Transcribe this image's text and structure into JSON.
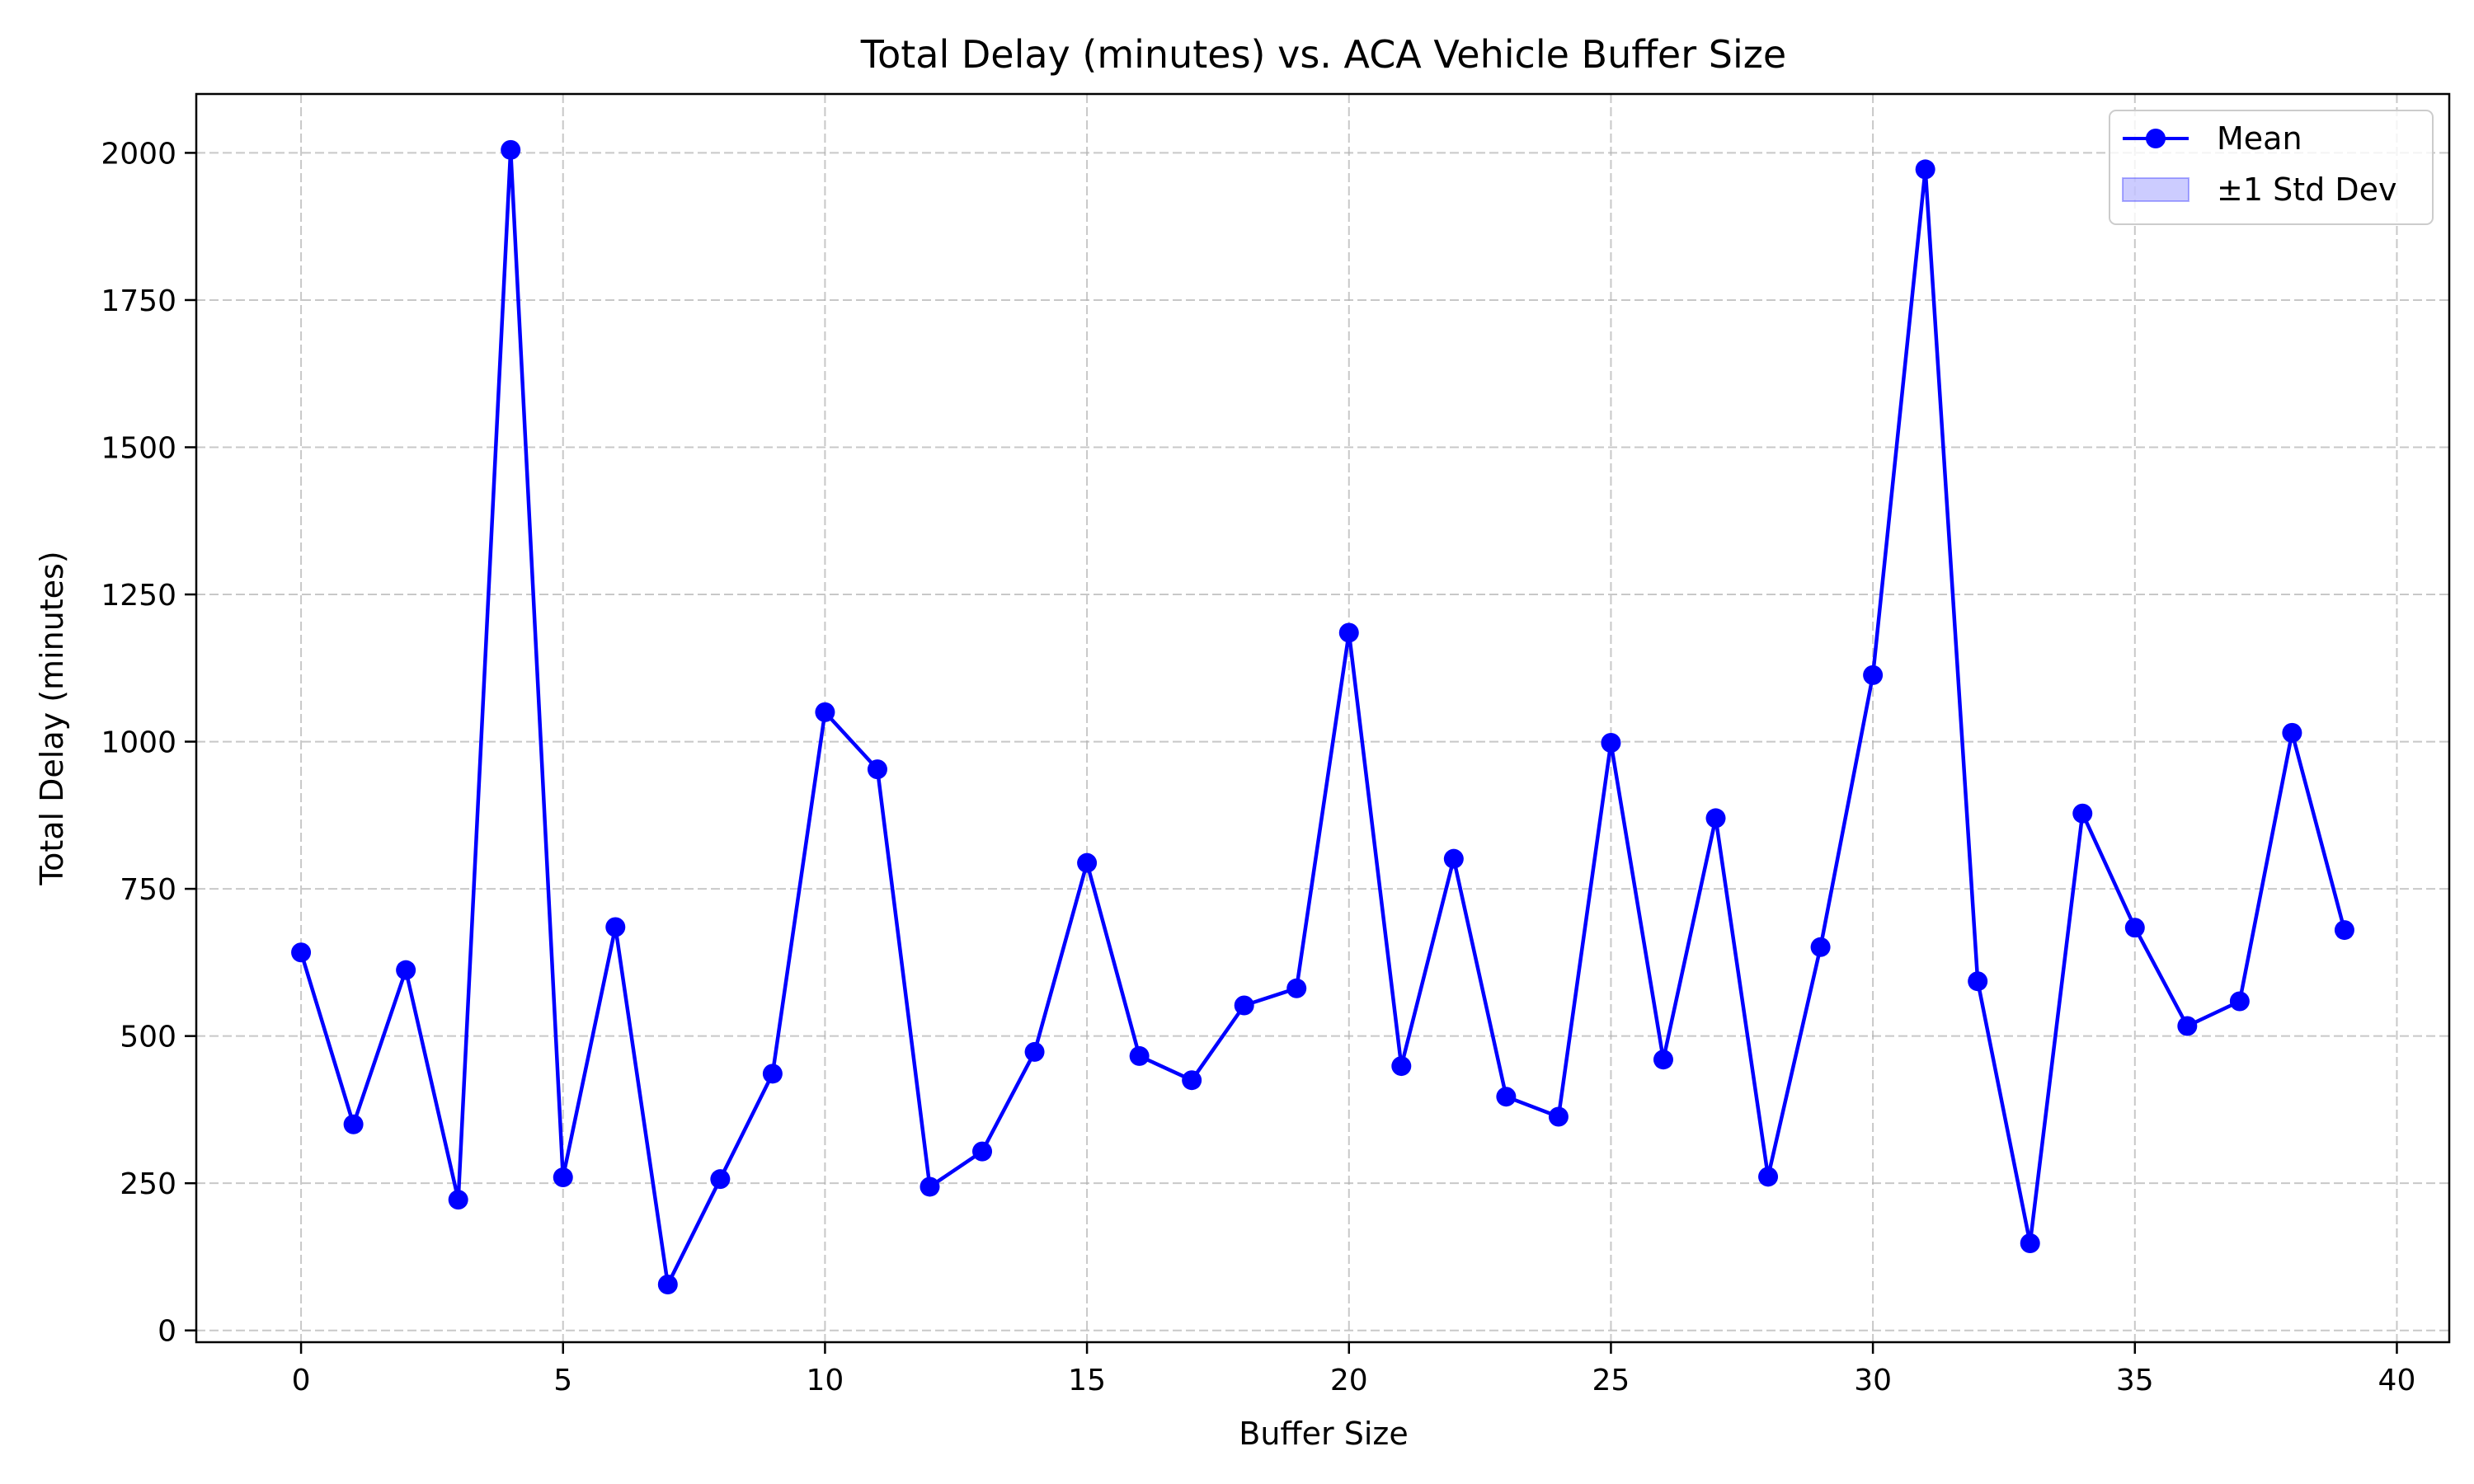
{
  "chart_data": {
    "type": "line",
    "title": "Total Delay (minutes) vs. ACA Vehicle Buffer Size",
    "xlabel": "Buffer Size",
    "ylabel": "Total Delay (minutes)",
    "xlim": [
      -2,
      41
    ],
    "ylim": [
      -20,
      2100
    ],
    "xticks": [
      0,
      5,
      10,
      15,
      20,
      25,
      30,
      35,
      40
    ],
    "yticks": [
      0,
      250,
      500,
      750,
      1000,
      1250,
      1500,
      1750,
      2000
    ],
    "grid": true,
    "legend_position": "top-right",
    "x": [
      0,
      1,
      2,
      3,
      4,
      5,
      6,
      7,
      8,
      9,
      10,
      11,
      12,
      13,
      14,
      15,
      16,
      17,
      18,
      19,
      20,
      21,
      22,
      23,
      24,
      25,
      26,
      27,
      28,
      29,
      30,
      31,
      32,
      33,
      34,
      35,
      36,
      37,
      38,
      39
    ],
    "series": [
      {
        "name": "Mean",
        "color": "#0000ff",
        "values": [
          642,
          350,
          612,
          222,
          2005,
          260,
          685,
          78,
          257,
          436,
          1050,
          953,
          244,
          304,
          473,
          794,
          466,
          425,
          552,
          581,
          1185,
          449,
          801,
          397,
          363,
          998,
          460,
          870,
          261,
          651,
          1113,
          1972,
          593,
          148,
          878,
          684,
          517,
          559,
          1015,
          680
        ]
      }
    ],
    "band": {
      "name": "±1 Std Dev",
      "color": "#0000ff",
      "visible_in_plot": false
    }
  }
}
